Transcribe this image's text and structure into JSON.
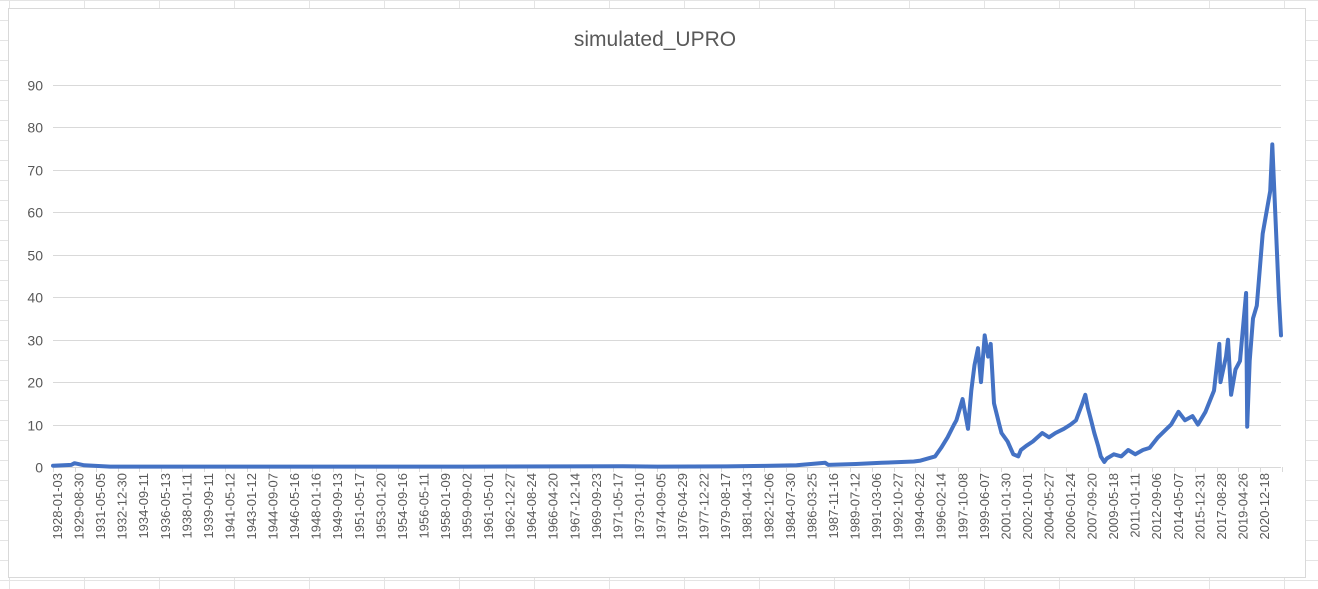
{
  "chart_data": {
    "type": "line",
    "title": "simulated_UPRO",
    "xlabel": "",
    "ylabel": "",
    "ylim": [
      0,
      90
    ],
    "y_ticks": [
      0,
      10,
      20,
      30,
      40,
      50,
      60,
      70,
      80,
      90
    ],
    "grid": true,
    "legend": "none",
    "x_ticks": [
      "1928-01-03",
      "1929-08-30",
      "1931-05-05",
      "1932-12-30",
      "1934-09-11",
      "1936-05-13",
      "1938-01-11",
      "1939-09-11",
      "1941-05-12",
      "1943-01-12",
      "1944-09-07",
      "1946-05-16",
      "1948-01-16",
      "1949-09-13",
      "1951-05-17",
      "1953-01-20",
      "1954-09-16",
      "1956-05-11",
      "1958-01-09",
      "1959-09-02",
      "1961-05-01",
      "1962-12-27",
      "1964-08-24",
      "1966-04-20",
      "1967-12-14",
      "1969-09-23",
      "1971-05-17",
      "1973-01-10",
      "1974-09-05",
      "1976-04-29",
      "1977-12-22",
      "1979-08-17",
      "1981-04-13",
      "1982-12-06",
      "1984-07-30",
      "1986-03-25",
      "1987-11-16",
      "1989-07-12",
      "1991-03-06",
      "1992-10-27",
      "1994-06-22",
      "1996-02-14",
      "1997-10-08",
      "1999-06-07",
      "2001-01-30",
      "2002-10-01",
      "2004-05-27",
      "2006-01-24",
      "2007-09-20",
      "2009-05-18",
      "2011-01-11",
      "2012-09-06",
      "2014-05-07",
      "2015-12-31",
      "2017-08-28",
      "2019-04-26",
      "2020-12-18"
    ],
    "series": [
      {
        "name": "",
        "color": "#4472c4",
        "x": [
          "1928-01-03",
          "1929-06-01",
          "1929-08-30",
          "1930-06-01",
          "1932-06-01",
          "1937-01-01",
          "1950-01-01",
          "1960-01-01",
          "1968-01-01",
          "1972-01-01",
          "1974-09-05",
          "1980-01-01",
          "1982-12-06",
          "1985-06-01",
          "1987-08-20",
          "1987-11-16",
          "1990-01-01",
          "1992-01-01",
          "1994-06-22",
          "1995-01-01",
          "1996-02-14",
          "1996-08-01",
          "1997-02-01",
          "1997-08-01",
          "1997-10-08",
          "1998-04-01",
          "1998-08-30",
          "1998-12-01",
          "1999-03-01",
          "1999-06-07",
          "1999-09-01",
          "1999-12-15",
          "2000-03-20",
          "2000-06-01",
          "2000-09-01",
          "2000-12-01",
          "2001-01-30",
          "2001-04-01",
          "2001-09-20",
          "2002-03-01",
          "2002-07-20",
          "2002-10-01",
          "2003-03-01",
          "2003-09-01",
          "2004-05-27",
          "2004-12-01",
          "2005-06-01",
          "2006-01-24",
          "2006-08-01",
          "2007-01-01",
          "2007-07-01",
          "2007-09-20",
          "2007-12-01",
          "2008-03-01",
          "2008-06-01",
          "2008-09-15",
          "2008-12-01",
          "2009-03-09",
          "2009-05-18",
          "2009-12-01",
          "2010-07-01",
          "2011-01-11",
          "2011-08-01",
          "2012-03-01",
          "2012-09-06",
          "2013-05-01",
          "2014-01-01",
          "2014-05-07",
          "2014-12-01",
          "2015-06-01",
          "2015-12-31",
          "2016-06-01",
          "2017-01-01",
          "2017-08-28",
          "2018-01-26",
          "2018-03-01",
          "2018-08-01",
          "2018-09-28",
          "2018-12-24",
          "2019-04-26",
          "2019-09-01",
          "2020-02-19",
          "2020-03-23",
          "2020-06-01",
          "2020-09-02",
          "2020-12-18",
          "2021-06-01",
          "2021-12-31",
          "2022-03-01",
          "2022-06-01",
          "2022-09-01",
          "2022-10-31"
        ],
        "values": [
          0.3,
          0.5,
          0.9,
          0.4,
          0.1,
          0.1,
          0.1,
          0.1,
          0.15,
          0.2,
          0.1,
          0.15,
          0.25,
          0.4,
          1.0,
          0.5,
          0.7,
          1.0,
          1.3,
          1.5,
          2.5,
          4.5,
          7,
          10,
          11,
          16,
          9,
          18,
          24,
          28,
          20,
          31,
          26,
          29,
          15,
          12,
          10,
          8,
          6,
          3,
          2.5,
          4,
          5,
          6,
          8,
          7,
          8,
          9,
          10,
          11,
          15,
          17,
          14,
          11,
          8,
          5,
          2.5,
          1.2,
          2,
          3,
          2.5,
          4,
          3,
          4,
          4.5,
          7,
          9,
          10,
          13,
          11,
          12,
          10,
          13,
          18,
          29,
          20,
          26,
          30,
          17,
          23,
          25,
          41,
          9.5,
          25,
          35,
          38,
          55,
          65,
          76,
          58,
          40,
          31
        ]
      }
    ]
  }
}
